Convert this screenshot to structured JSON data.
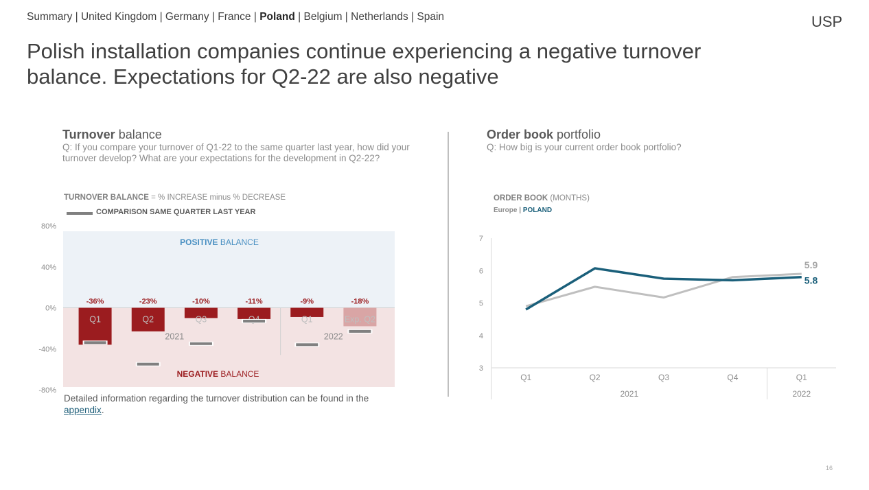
{
  "nav": {
    "items": [
      "Summary",
      "United Kingdom",
      "Germany",
      "France",
      "Poland",
      "Belgium",
      "Netherlands",
      "Spain"
    ],
    "active": "Poland",
    "separator": " | "
  },
  "logo": {
    "text": "USP"
  },
  "title": "Polish installation companies continue experiencing a negative turnover balance. Expectations for Q2-22 are also negative",
  "left_panel": {
    "title_bold": "Turnover",
    "title_rest": " balance",
    "question": "Q: If you compare your turnover of Q1-22 to the same quarter last year, how did your turnover develop? What are your expectations for the development in Q2-22?",
    "subtitle_bold": "TURNOVER BALANCE",
    "subtitle_rest": " = % INCREASE minus % DECREASE",
    "legend_label": "COMPARISON SAME QUARTER LAST YEAR",
    "positive_label_bold": "POSITIVE",
    "positive_label_rest": " BALANCE",
    "negative_label_bold": "NEGATIVE",
    "negative_label_rest": " BALANCE",
    "footnote_text": "Detailed information regarding the turnover distribution can be found in the ",
    "footnote_link": "appendix",
    "footnote_end": "."
  },
  "right_panel": {
    "title_bold": "Order book",
    "title_rest": " portfolio",
    "question": "Q: How big is your current order book portfolio?",
    "subtitle_bold": "ORDER BOOK",
    "subtitle_rest": " (MONTHS)",
    "legend_europe": "Europe",
    "legend_sep": " | ",
    "legend_poland": "POLAND"
  },
  "colors": {
    "bar_dark": "#9b1c1f",
    "bar_light": "#d9a5a5",
    "positive_bg": "#edf2f7",
    "negative_bg": "#f3e3e3",
    "positive_text": "#4a90c2",
    "negative_text": "#9b1c1f",
    "poland_line": "#1a5f7a",
    "europe_line": "#bfbfbf"
  },
  "chart_data": [
    {
      "type": "bar",
      "categories": [
        "Q1",
        "Q2",
        "Q3",
        "Q4",
        "Q1",
        "Exp. Q2"
      ],
      "groups": [
        {
          "label": "2021",
          "count": 4
        },
        {
          "label": "2022",
          "count": 2
        }
      ],
      "series": [
        {
          "name": "",
          "values": [
            -36,
            -23,
            -10,
            -11,
            -9,
            -18
          ],
          "labels": [
            "-36%",
            "-23%",
            "-10%",
            "-11%",
            "-9%",
            "-18%"
          ]
        },
        {
          "name": "COMPARISON SAME QUARTER LAST YEAR",
          "values": [
            -34,
            -55,
            -35,
            -13,
            -36,
            -23
          ]
        }
      ],
      "y_ticks": [
        "80%",
        "40%",
        "0%",
        "-40%",
        "-80%"
      ],
      "ylim": [
        -80,
        80
      ]
    },
    {
      "type": "line",
      "categories": [
        "Q1",
        "Q2",
        "Q3",
        "Q4",
        "Q1"
      ],
      "groups": [
        {
          "label": "2021",
          "count": 4
        },
        {
          "label": "2022",
          "count": 1
        }
      ],
      "series": [
        {
          "name": "Europe",
          "values": [
            4.9,
            5.5,
            5.17,
            5.8,
            5.9
          ],
          "end_label": "5.9"
        },
        {
          "name": "POLAND",
          "values": [
            4.8,
            6.07,
            5.75,
            5.7,
            5.8
          ],
          "end_label": "5.8"
        }
      ],
      "y_ticks": [
        "7",
        "6",
        "5",
        "4",
        "3"
      ],
      "ylim": [
        3,
        7
      ]
    }
  ],
  "page_number": "16"
}
